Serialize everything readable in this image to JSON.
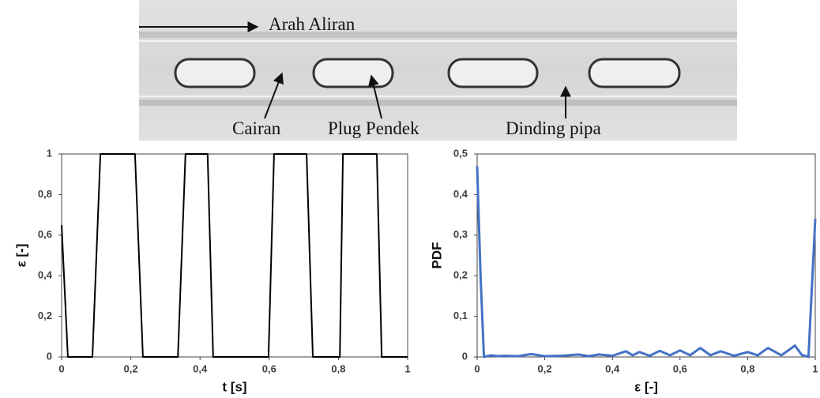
{
  "photo": {
    "labels": [
      "Arah Aliran",
      "Cairan",
      "Plug Pendek",
      "Dinding pipa"
    ]
  },
  "chart_data": [
    {
      "type": "line",
      "xlabel": "t [s]",
      "ylabel": "ε [-]",
      "color": "#000000",
      "x": [
        0,
        0.018,
        0.089,
        0.112,
        0.212,
        0.235,
        0.336,
        0.358,
        0.422,
        0.438,
        0.598,
        0.614,
        0.708,
        0.726,
        0.804,
        0.813,
        0.911,
        0.925,
        1
      ],
      "values": [
        0.65,
        0,
        0,
        1,
        1,
        0,
        0,
        1,
        1,
        0,
        0,
        1,
        1,
        0,
        0,
        1,
        1,
        0,
        0
      ],
      "xlim": [
        0,
        1
      ],
      "ylim": [
        0,
        1
      ],
      "xticks": [
        0,
        {
          "value": 0.2,
          "label": "0,2"
        },
        {
          "value": 0.4,
          "label": "0,4"
        },
        {
          "value": 0.6,
          "label": "0,6"
        },
        {
          "value": 0.8,
          "label": "0,8"
        },
        1
      ],
      "yticks": [
        0,
        {
          "value": 0.2,
          "label": "0,2"
        },
        {
          "value": 0.4,
          "label": "0,4"
        },
        {
          "value": 0.6,
          "label": "0,6"
        },
        {
          "value": 0.8,
          "label": "0,8"
        },
        1
      ]
    },
    {
      "type": "line",
      "xlabel": "ε [-]",
      "ylabel": "PDF",
      "color": "#4472c4",
      "x": [
        0,
        0.01,
        0.02,
        0.04,
        0.06,
        0.08,
        0.12,
        0.16,
        0.2,
        0.25,
        0.3,
        0.33,
        0.36,
        0.4,
        0.44,
        0.46,
        0.48,
        0.51,
        0.54,
        0.57,
        0.6,
        0.63,
        0.66,
        0.69,
        0.72,
        0.76,
        0.8,
        0.83,
        0.86,
        0.9,
        0.94,
        0.96,
        0.98,
        1
      ],
      "values": [
        0.47,
        0.2,
        0,
        0.004,
        0.002,
        0.003,
        0.002,
        0.007,
        0.002,
        0.003,
        0.006,
        0.002,
        0.006,
        0.003,
        0.014,
        0.004,
        0.012,
        0.003,
        0.015,
        0.004,
        0.016,
        0.004,
        0.022,
        0.004,
        0.014,
        0.003,
        0.012,
        0.004,
        0.022,
        0.004,
        0.028,
        0.005,
        0,
        0.34
      ],
      "xlim": [
        0,
        1
      ],
      "ylim": [
        0,
        0.5
      ],
      "xticks": [
        0,
        {
          "value": 0.2,
          "label": "0,2"
        },
        {
          "value": 0.4,
          "label": "0,4"
        },
        {
          "value": 0.6,
          "label": "0,6"
        },
        {
          "value": 0.8,
          "label": "0,8"
        },
        1
      ],
      "yticks": [
        0,
        {
          "value": 0.1,
          "label": "0,1"
        },
        {
          "value": 0.2,
          "label": "0,2"
        },
        {
          "value": 0.3,
          "label": "0,3"
        },
        {
          "value": 0.4,
          "label": "0,4"
        },
        {
          "value": 0.5,
          "label": "0,5"
        }
      ]
    }
  ]
}
